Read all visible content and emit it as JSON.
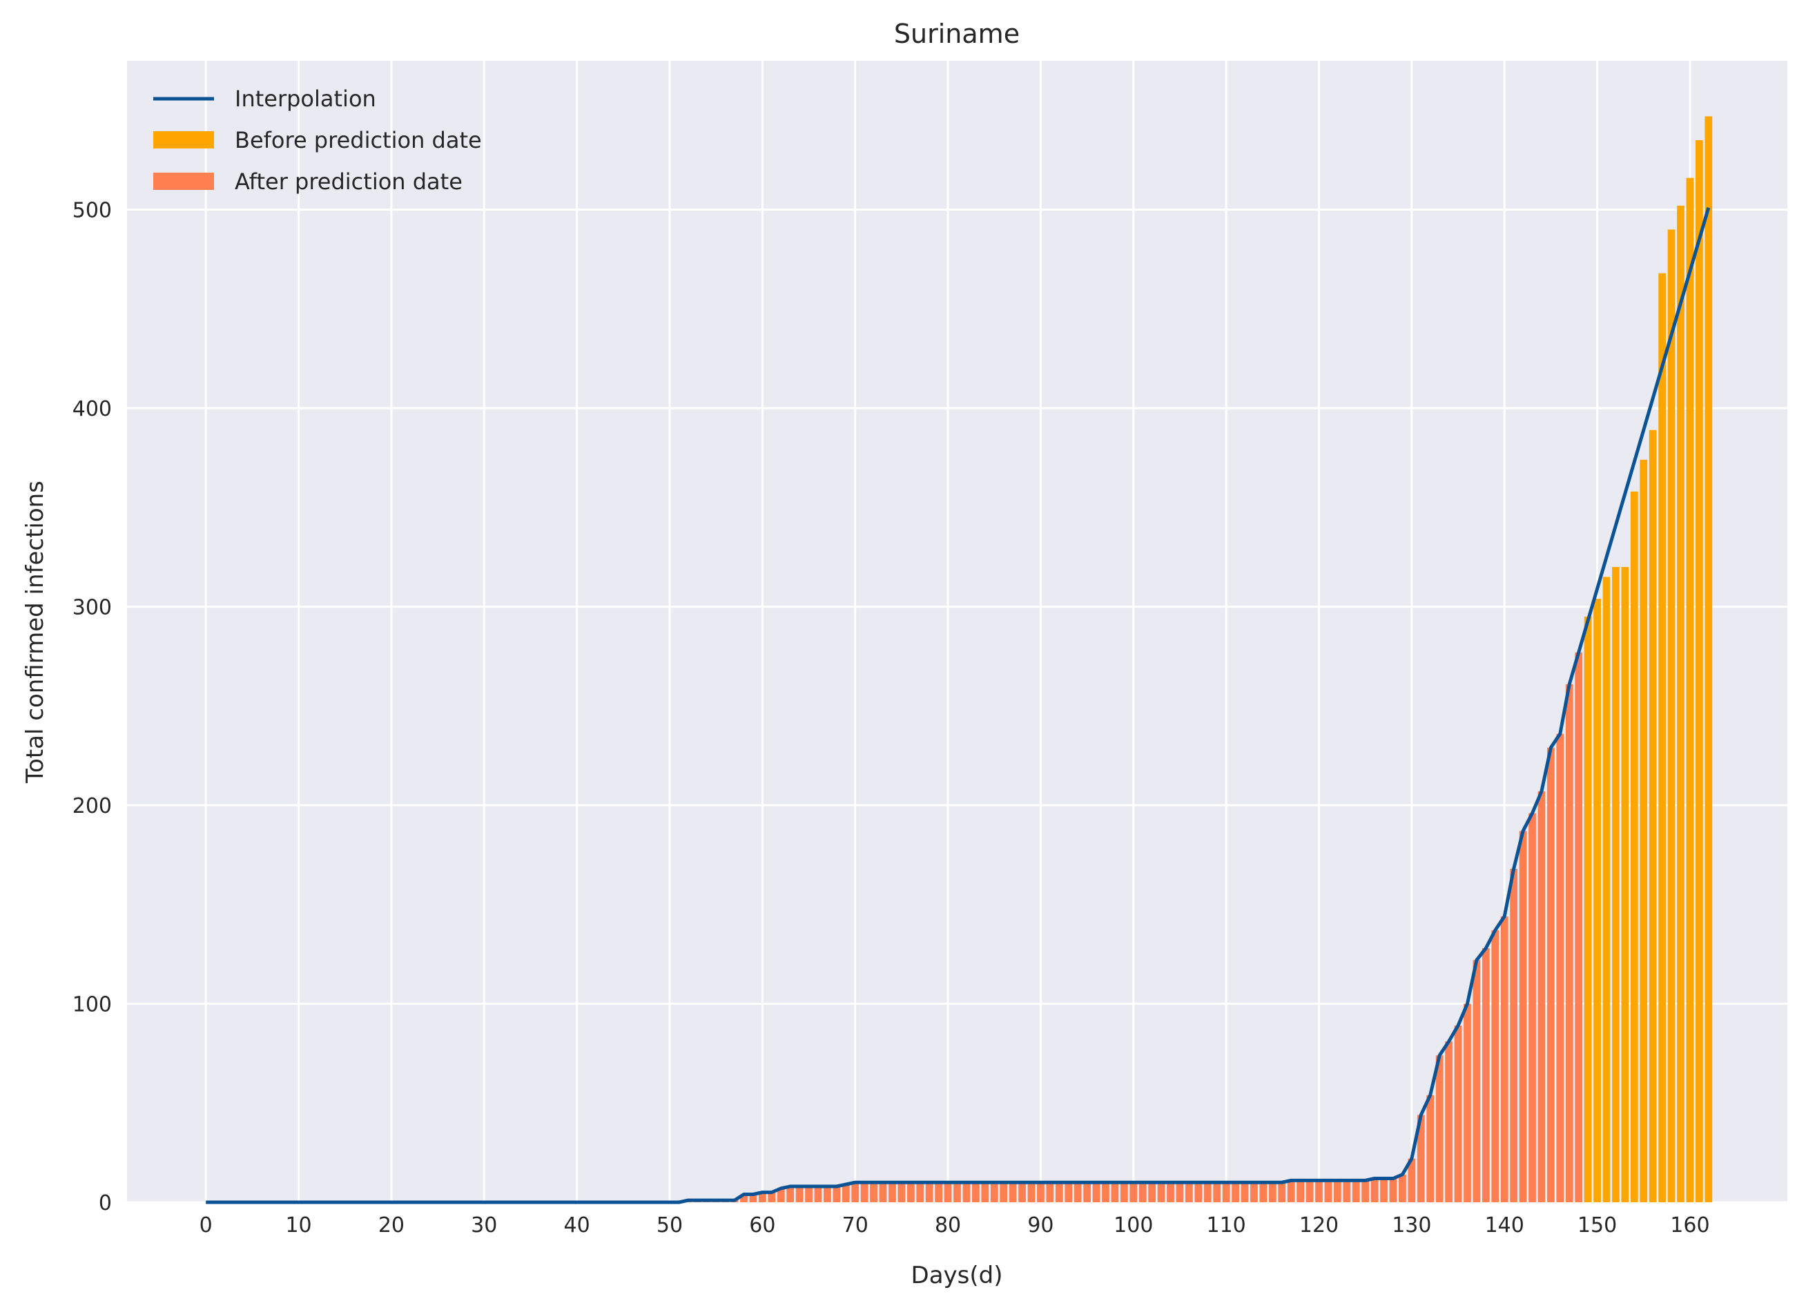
{
  "chart_data": {
    "type": "bar",
    "title": "Suriname",
    "xlabel": "Days(d)",
    "ylabel": "Total confirmed infections",
    "xlim": [
      -8.5,
      170.5
    ],
    "ylim": [
      0,
      575
    ],
    "xticks": [
      0,
      10,
      20,
      30,
      40,
      50,
      60,
      70,
      80,
      90,
      100,
      110,
      120,
      130,
      140,
      150,
      160
    ],
    "yticks": [
      0,
      100,
      200,
      300,
      400,
      500
    ],
    "grid": true,
    "legend_position": "upper-left",
    "colors": {
      "background": "#EAEAF2",
      "grid": "#FFFFFF",
      "before": "#FFA500",
      "after": "#FF7F50",
      "line": "#0B5394"
    },
    "series": [
      {
        "name": "Interpolation",
        "kind": "line",
        "x": [
          0,
          51,
          52,
          57,
          58,
          59,
          60,
          61,
          62,
          63,
          68,
          69,
          70,
          116,
          117,
          125,
          126,
          128,
          129,
          130,
          131,
          132,
          133,
          134,
          135,
          136,
          137,
          138,
          139,
          140,
          141,
          142,
          143,
          144,
          145,
          146,
          147,
          162
        ],
        "y": [
          0,
          0,
          1,
          1,
          4,
          4,
          5,
          5,
          7,
          8,
          8,
          9,
          10,
          10,
          11,
          11,
          12,
          12,
          14,
          22,
          44,
          54,
          74,
          81,
          89,
          100,
          122,
          128,
          137,
          144,
          168,
          187,
          196,
          207,
          229,
          236,
          261,
          501
        ]
      },
      {
        "name": "Before prediction date",
        "kind": "bar",
        "x": [
          149,
          150,
          151,
          152,
          153,
          154,
          155,
          156,
          157,
          158,
          159,
          160,
          161,
          162
        ],
        "values": [
          295,
          304,
          315,
          320,
          320,
          358,
          374,
          389,
          468,
          490,
          502,
          516,
          535,
          547
        ]
      },
      {
        "name": "After prediction date",
        "kind": "bar",
        "x_start": 0,
        "values": [
          0,
          0,
          0,
          0,
          0,
          0,
          0,
          0,
          0,
          0,
          0,
          0,
          0,
          0,
          0,
          0,
          0,
          0,
          0,
          0,
          0,
          0,
          0,
          0,
          0,
          0,
          0,
          0,
          0,
          0,
          0,
          0,
          0,
          0,
          0,
          0,
          0,
          0,
          0,
          0,
          0,
          0,
          0,
          0,
          0,
          0,
          0,
          0,
          0,
          0,
          0,
          0,
          1,
          1,
          1,
          1,
          1,
          1,
          4,
          4,
          5,
          5,
          7,
          8,
          8,
          8,
          8,
          8,
          8,
          9,
          10,
          10,
          10,
          10,
          10,
          10,
          10,
          10,
          10,
          10,
          10,
          10,
          10,
          10,
          10,
          10,
          10,
          10,
          10,
          10,
          10,
          10,
          10,
          10,
          10,
          10,
          10,
          10,
          10,
          10,
          10,
          10,
          10,
          10,
          10,
          10,
          10,
          10,
          10,
          10,
          10,
          10,
          10,
          10,
          10,
          10,
          10,
          11,
          11,
          11,
          11,
          11,
          11,
          11,
          11,
          11,
          12,
          12,
          12,
          14,
          22,
          44,
          54,
          74,
          81,
          89,
          100,
          122,
          128,
          137,
          144,
          168,
          187,
          196,
          207,
          229,
          236,
          261,
          277,
          290
        ]
      }
    ]
  }
}
